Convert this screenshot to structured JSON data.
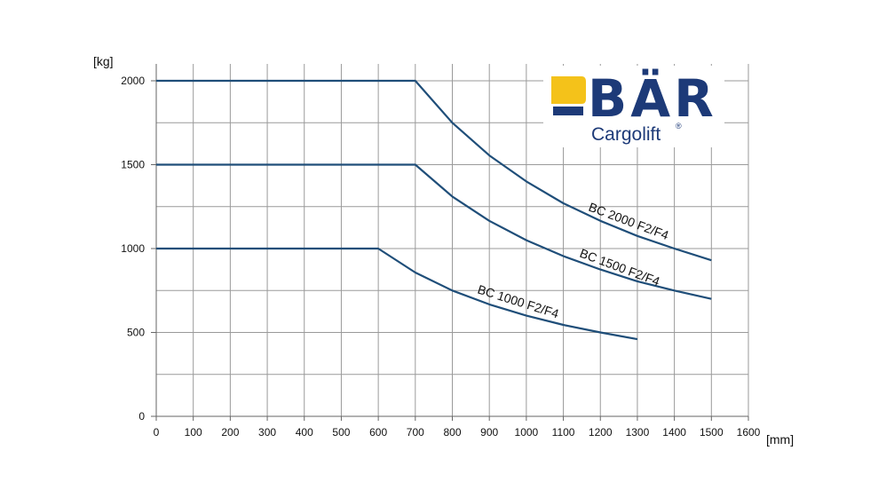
{
  "chart_data": {
    "type": "line",
    "xlabel": "[mm]",
    "ylabel": "[kg]",
    "xlim": [
      0,
      1600
    ],
    "ylim": [
      0,
      2100
    ],
    "x_ticks": [
      "0",
      "100",
      "200",
      "300",
      "400",
      "500",
      "600",
      "700",
      "800",
      "900",
      "1000",
      "1100",
      "1200",
      "1300",
      "1400",
      "1500",
      "1600"
    ],
    "y_ticks": [
      "0",
      "500",
      "1000",
      "1500",
      "2000"
    ],
    "grid": true,
    "legend": "inline labels on curves",
    "color": "#1f4e79",
    "series": [
      {
        "name": "BC 2000 F2/F4",
        "x": [
          0,
          700,
          800,
          900,
          1000,
          1100,
          1200,
          1300,
          1400,
          1500
        ],
        "y": [
          2000,
          2000,
          1750,
          1555,
          1400,
          1270,
          1165,
          1075,
          1000,
          930
        ]
      },
      {
        "name": "BC 1500 F2/F4",
        "x": [
          0,
          700,
          800,
          900,
          1000,
          1100,
          1200,
          1300,
          1400,
          1500
        ],
        "y": [
          1500,
          1500,
          1310,
          1165,
          1050,
          955,
          875,
          805,
          750,
          700
        ]
      },
      {
        "name": "BC 1000 F2/F4",
        "x": [
          0,
          600,
          700,
          800,
          900,
          1000,
          1100,
          1200,
          1300
        ],
        "y": [
          1000,
          1000,
          857,
          750,
          667,
          600,
          545,
          500,
          460
        ]
      }
    ]
  },
  "logo": {
    "brand": "BÄR",
    "subtitle": "Cargolift",
    "registered": "®"
  }
}
